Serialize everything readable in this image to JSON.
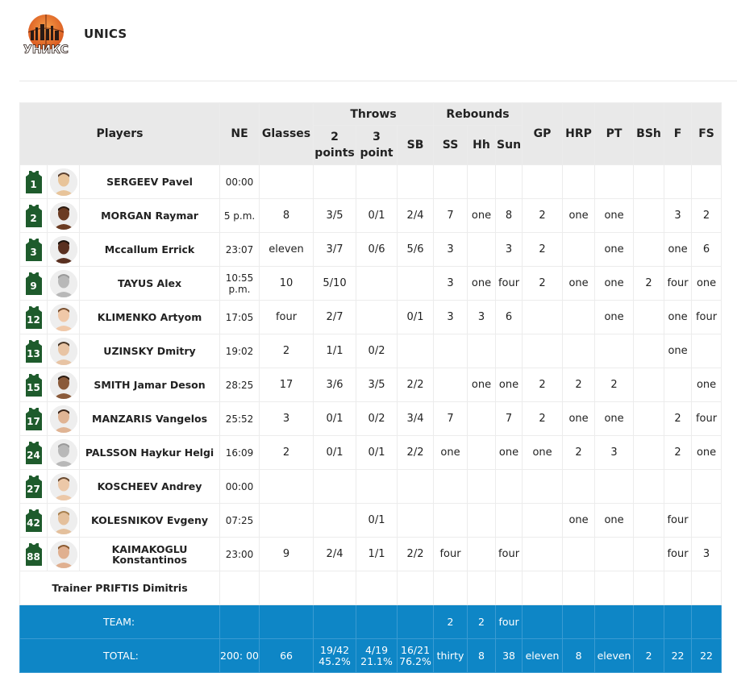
{
  "header": {
    "logo_text": "УНИКС",
    "team_name": "UNICS"
  },
  "table": {
    "headers": {
      "players": "Players",
      "ne": "NE",
      "glasses": "Glasses",
      "throws": "Throws",
      "two_points": "2 points",
      "three_point": "3 point",
      "sb": "SB",
      "rebounds": "Rebounds",
      "ss": "SS",
      "hh": "Hh",
      "sun": "Sun",
      "gp": "GP",
      "hrp": "HRP",
      "pt": "PT",
      "bsh": "BSh",
      "f": "F",
      "fs": "FS"
    },
    "players": [
      {
        "number": "1",
        "name": "SERGEEV Pavel",
        "ne": "00:00",
        "glasses": "",
        "two": "",
        "three": "",
        "sb": "",
        "ss": "",
        "hh": "",
        "sun": "",
        "gp": "",
        "hrp": "",
        "pt": "",
        "bsh": "",
        "f": "",
        "fs": "",
        "skin": "#e8c49a",
        "hair": "#5a4030"
      },
      {
        "number": "2",
        "name": "MORGAN Raymar",
        "ne": "5 p.m.",
        "glasses": "8",
        "two": "3/5",
        "three": "0/1",
        "sb": "2/4",
        "ss": "7",
        "hh": "one",
        "sun": "8",
        "gp": "2",
        "hrp": "one",
        "pt": "one",
        "bsh": "",
        "f": "3",
        "fs": "2",
        "skin": "#6b3b22",
        "hair": "#2b1a10"
      },
      {
        "number": "3",
        "name": "Mccallum Errick",
        "ne": "23:07",
        "glasses": "eleven",
        "two": "3/7",
        "three": "0/6",
        "sb": "5/6",
        "ss": "3",
        "hh": "",
        "sun": "3",
        "gp": "2",
        "hrp": "",
        "pt": "one",
        "bsh": "",
        "f": "one",
        "fs": "6",
        "skin": "#5a3020",
        "hair": "#1c120c"
      },
      {
        "number": "9",
        "name": "TAYUS Alex",
        "ne": "10:55 p.m.",
        "glasses": "10",
        "two": "5/10",
        "three": "",
        "sb": "",
        "ss": "3",
        "hh": "one",
        "sun": "four",
        "gp": "2",
        "hrp": "one",
        "pt": "one",
        "bsh": "2",
        "f": "four",
        "fs": "one",
        "skin": "#b8b8b8",
        "hair": "#9a9a9a"
      },
      {
        "number": "12",
        "name": "KLIMENKO Artyom",
        "ne": "17:05",
        "glasses": "four",
        "two": "2/7",
        "three": "",
        "sb": "0/1",
        "ss": "3",
        "hh": "3",
        "sun": "6",
        "gp": "",
        "hrp": "",
        "pt": "one",
        "bsh": "",
        "f": "one",
        "fs": "four",
        "skin": "#f0c8a8",
        "hair": "#7a5030"
      },
      {
        "number": "13",
        "name": "UZINSKY Dmitry",
        "ne": "19:02",
        "glasses": "2",
        "two": "1/1",
        "three": "0/2",
        "sb": "",
        "ss": "",
        "hh": "",
        "sun": "",
        "gp": "",
        "hrp": "",
        "pt": "",
        "bsh": "",
        "f": "one",
        "fs": "",
        "skin": "#e8c4a4",
        "hair": "#4a3828"
      },
      {
        "number": "15",
        "name": "SMITH Jamar Deson",
        "ne": "28:25",
        "glasses": "17",
        "two": "3/6",
        "three": "3/5",
        "sb": "2/2",
        "ss": "",
        "hh": "one",
        "sun": "one",
        "gp": "2",
        "hrp": "2",
        "pt": "2",
        "bsh": "",
        "f": "",
        "fs": "one",
        "skin": "#8a5a3a",
        "hair": "#2a1a10"
      },
      {
        "number": "17",
        "name": "MANZARIS Vangelos",
        "ne": "25:52",
        "glasses": "3",
        "two": "0/1",
        "three": "0/2",
        "sb": "3/4",
        "ss": "7",
        "hh": "",
        "sun": "7",
        "gp": "2",
        "hrp": "one",
        "pt": "one",
        "bsh": "",
        "f": "2",
        "fs": "four",
        "skin": "#e0b494",
        "hair": "#3a2418"
      },
      {
        "number": "24",
        "name": "PALSSON Haykur Helgi",
        "ne": "16:09",
        "glasses": "2",
        "two": "0/1",
        "three": "0/1",
        "sb": "2/2",
        "ss": "one",
        "hh": "",
        "sun": "one",
        "gp": "one",
        "hrp": "2",
        "pt": "3",
        "bsh": "",
        "f": "2",
        "fs": "one",
        "skin": "#b8b8b8",
        "hair": "#9a9a9a"
      },
      {
        "number": "27",
        "name": "KOSCHEEV Andrey",
        "ne": "00:00",
        "glasses": "",
        "two": "",
        "three": "",
        "sb": "",
        "ss": "",
        "hh": "",
        "sun": "",
        "gp": "",
        "hrp": "",
        "pt": "",
        "bsh": "",
        "f": "",
        "fs": "",
        "skin": "#ecc8a8",
        "hair": "#6a4a30"
      },
      {
        "number": "42",
        "name": "KOLESNIKOV Evgeny",
        "ne": "07:25",
        "glasses": "",
        "two": "",
        "three": "0/1",
        "sb": "",
        "ss": "",
        "hh": "",
        "sun": "",
        "gp": "",
        "hrp": "one",
        "pt": "one",
        "bsh": "",
        "f": "four",
        "fs": "",
        "skin": "#e4c09c",
        "hair": "#a88050"
      },
      {
        "number": "88",
        "name": "KAIMAKOGLU Konstantinos",
        "ne": "23:00",
        "glasses": "9",
        "two": "2/4",
        "three": "1/1",
        "sb": "2/2",
        "ss": "four",
        "hh": "",
        "sun": "four",
        "gp": "",
        "hrp": "",
        "pt": "",
        "bsh": "",
        "f": "four",
        "fs": "3",
        "skin": "#e0b090",
        "hair": "#8a5a30"
      }
    ],
    "trainer": "Trainer PRIFTIS Dimitris",
    "team_row": {
      "label": "TEAM:",
      "ss": "2",
      "hh": "2",
      "sun": "four"
    },
    "total_row": {
      "label": "TOTAL:",
      "ne": "200: 00",
      "glasses": "66",
      "two": "19/42",
      "two_pct": "45.2%",
      "three": "4/19",
      "three_pct": "21.1%",
      "sb": "16/21",
      "sb_pct": "76.2%",
      "ss": "thirty",
      "hh": "8",
      "sun": "38",
      "gp": "eleven",
      "hrp": "8",
      "pt": "eleven",
      "bsh": "2",
      "f": "22",
      "fs": "22"
    }
  },
  "colors": {
    "header_bg": "#e9e9e9",
    "jersey": "#1e5b2c",
    "total_bg": "#0e86c6"
  }
}
